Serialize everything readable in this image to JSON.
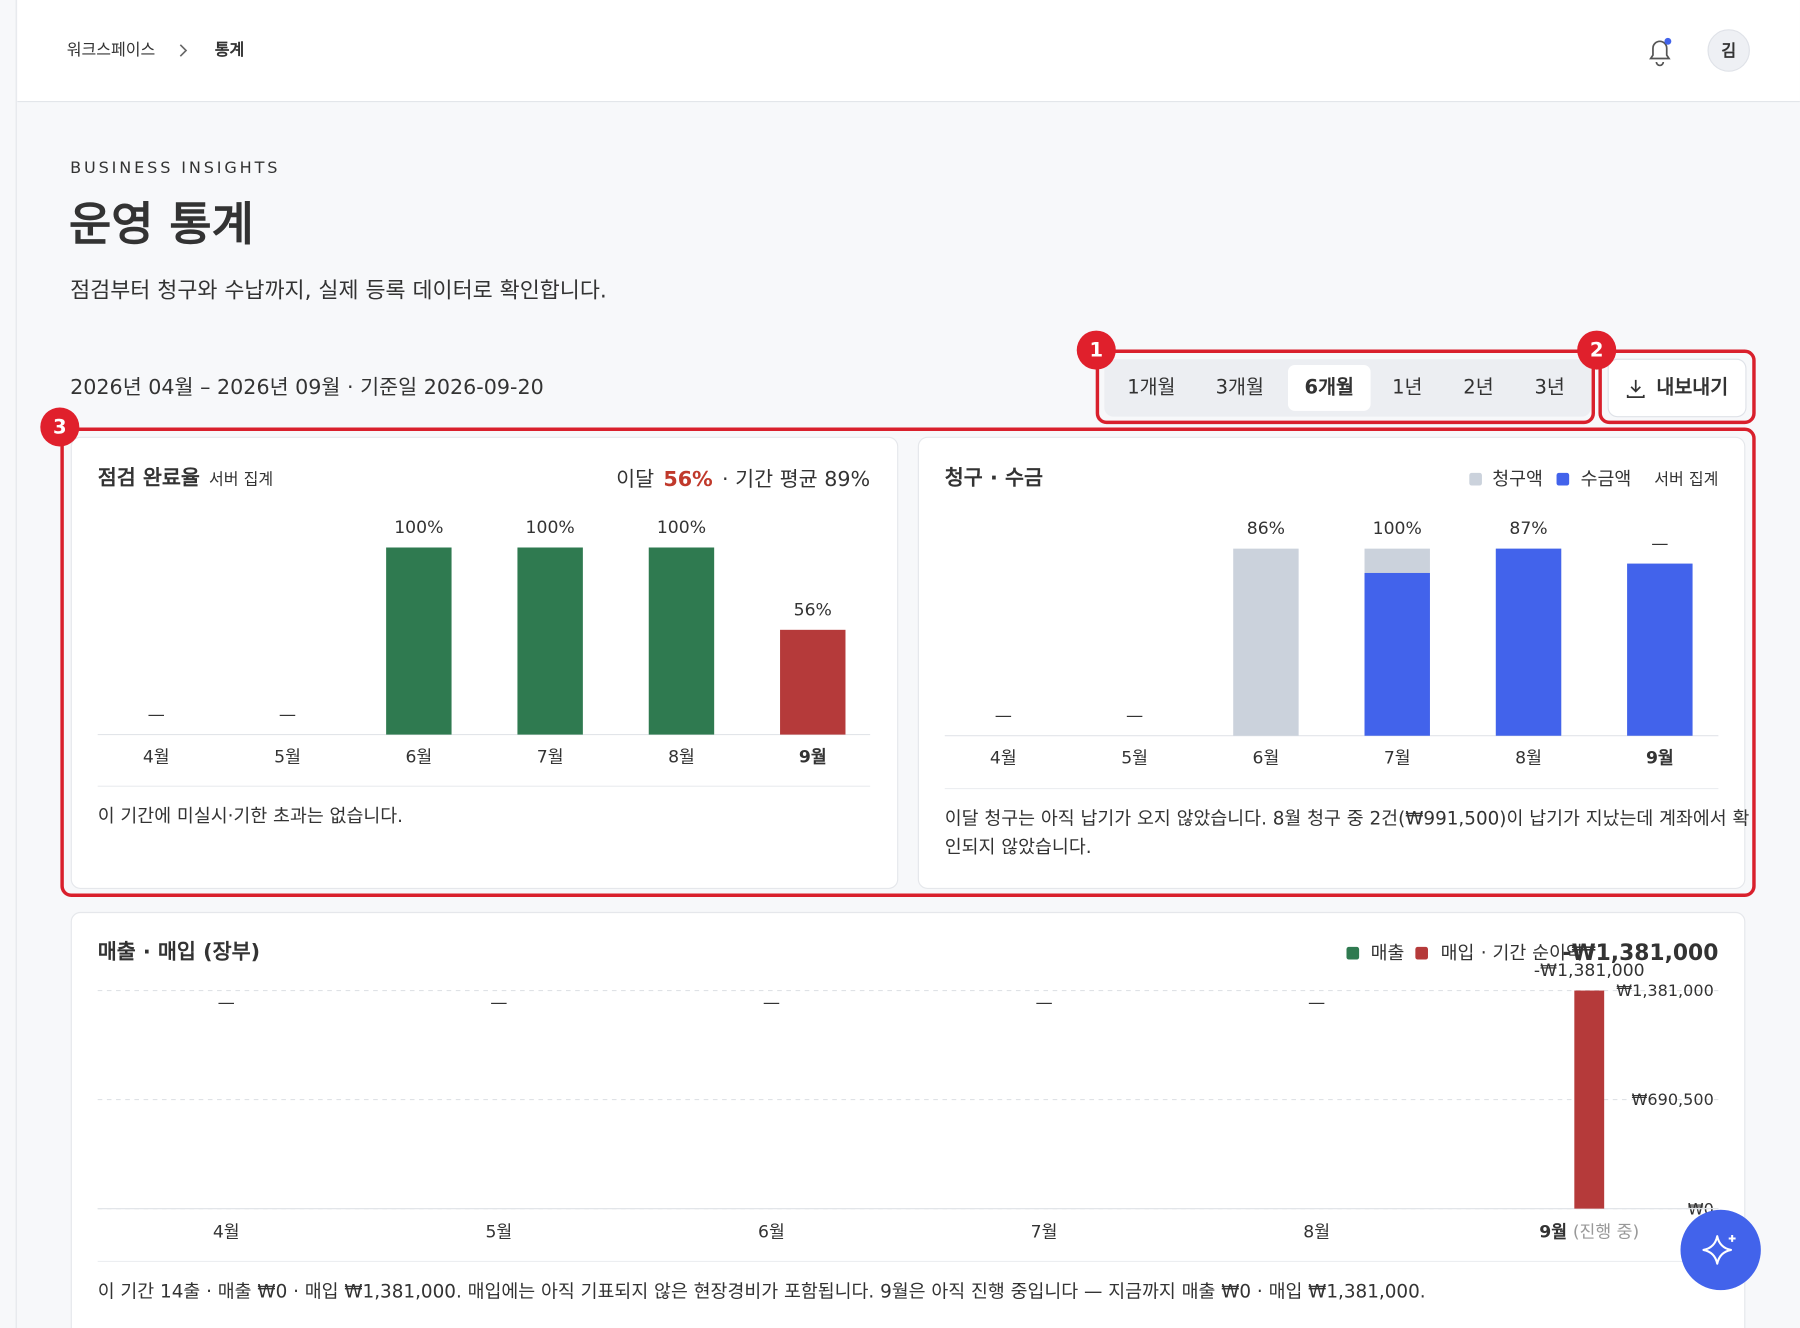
{
  "header": {
    "breadcrumb": [
      "워크스페이스",
      "통계"
    ],
    "avatar": "김"
  },
  "page": {
    "eyebrow": "BUSINESS INSIGHTS",
    "title": "운영 통계",
    "subtitle": "점검부터 청구와 수납까지, 실제 등록 데이터로 확인합니다.",
    "range": "2026년 04월 – 2026년 09월 · 기준일 2026-09-20"
  },
  "controls": {
    "periods": [
      "1개월",
      "3개월",
      "6개월",
      "1년",
      "2년",
      "3년"
    ],
    "active_period": 2,
    "export": "내보내기"
  },
  "annotations": [
    "1",
    "2",
    "3"
  ],
  "chart_data": [
    {
      "type": "bar",
      "title": "점검 완료율",
      "note": "서버 집계",
      "summary": {
        "label": "이달",
        "value": "56%",
        "rest": "· 기간 평균 89%"
      },
      "categories": [
        "4월",
        "5월",
        "6월",
        "7월",
        "8월",
        "9월"
      ],
      "current_index": 5,
      "values": [
        null,
        null,
        100,
        100,
        100,
        56
      ],
      "value_labels": [
        "—",
        "—",
        "100%",
        "100%",
        "100%",
        "56%"
      ],
      "colors": [
        "#2f7a50",
        "#2f7a50",
        "#2f7a50",
        "#2f7a50",
        "#2f7a50",
        "#b53a3a"
      ],
      "ylim": [
        0,
        100
      ],
      "footnote": "이 기간에 미실시·기한 초과는 없습니다."
    },
    {
      "type": "bar",
      "title": "청구 · 수금",
      "note": "서버 집계",
      "categories": [
        "4월",
        "5월",
        "6월",
        "7월",
        "8월",
        "9월"
      ],
      "current_index": 5,
      "series": [
        {
          "name": "청구액",
          "color": "#cbd2dc",
          "values": [
            null,
            null,
            100,
            100,
            100,
            92
          ]
        },
        {
          "name": "수금액",
          "color": "#4263eb",
          "values": [
            null,
            null,
            null,
            87,
            100,
            92
          ]
        }
      ],
      "rate_labels": [
        "—",
        "—",
        "86%",
        "100%",
        "87%",
        "—"
      ],
      "ylim": [
        0,
        100
      ],
      "footnote": [
        "이달 청구는 아직 납기가 오지 않았습니다. 8월 청구 중 2건(₩991,500)이 납기가 지났는데 계좌에서 확",
        "인되지 않았습니다."
      ]
    },
    {
      "type": "bar",
      "title": "매출 · 매입 (장부)",
      "categories": [
        "4월",
        "5월",
        "6월",
        "7월",
        "8월",
        "9월"
      ],
      "current_index": 5,
      "current_suffix": "(진행 중)",
      "series": [
        {
          "name": "매출",
          "color": "#2f7a50",
          "values": [
            0,
            0,
            0,
            0,
            0,
            null
          ],
          "value_labels": [
            "—",
            "—",
            "—",
            "—",
            "—",
            null
          ]
        },
        {
          "name": "매입",
          "color": "#b53a3a",
          "values": [
            0,
            0,
            0,
            0,
            0,
            1381000
          ],
          "value_labels": [
            null,
            null,
            null,
            null,
            null,
            "-₩1,381,000"
          ]
        }
      ],
      "net_label": "· 기간 순이익",
      "net_value": "-₩1,381,000",
      "ylim": [
        0,
        1381000
      ],
      "yticks": [
        {
          "value": 0,
          "label": "₩0"
        },
        {
          "value": 690500,
          "label": "₩690,500"
        },
        {
          "value": 1381000,
          "label": "₩1,381,000"
        }
      ],
      "grid": true,
      "footnote": "이 기간 14출 · 매출 ₩0 · 매입 ₩1,381,000. 매입에는 아직 기표되지 않은 현장경비가 포함됩니다. 9월은 아직 진행 중입니다 — 지금까지 매출 ₩0 · 매입 ₩1,381,000."
    }
  ]
}
